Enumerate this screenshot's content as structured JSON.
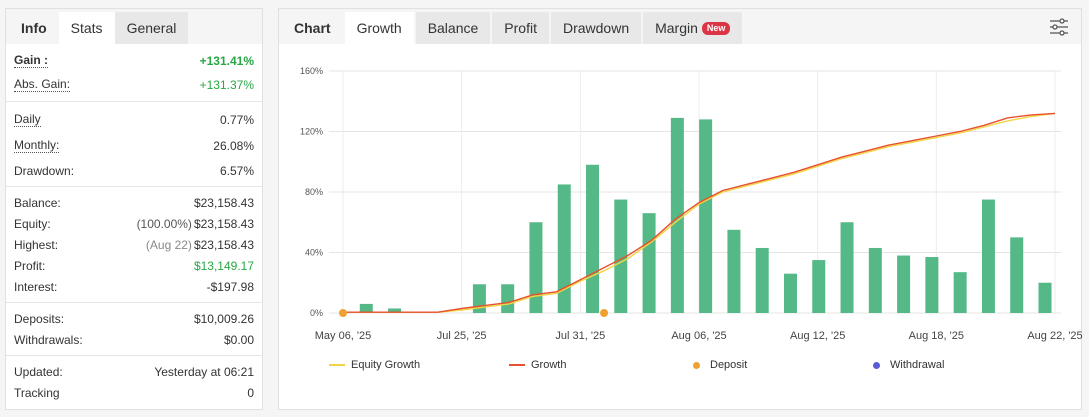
{
  "left_tabs": [
    {
      "label": "Info"
    },
    {
      "label": "Stats"
    },
    {
      "label": "General"
    }
  ],
  "stats": {
    "gain": {
      "label": "Gain :",
      "value": "+131.41%"
    },
    "abs_gain": {
      "label": "Abs. Gain:",
      "value": "+131.37%"
    },
    "daily": {
      "label": "Daily",
      "value": "0.77%"
    },
    "monthly": {
      "label": "Monthly:",
      "value": "26.08%"
    },
    "drawdown": {
      "label": "Drawdown:",
      "value": "6.57%"
    },
    "balance": {
      "label": "Balance:",
      "value": "$23,158.43"
    },
    "equity": {
      "label": "Equity:",
      "note": "(100.00%)",
      "value": "$23,158.43"
    },
    "highest": {
      "label": "Highest:",
      "note": "(Aug 22)",
      "value": "$23,158.43"
    },
    "profit": {
      "label": "Profit:",
      "value": "$13,149.17"
    },
    "interest": {
      "label": "Interest:",
      "value": "-$197.98"
    },
    "deposits": {
      "label": "Deposits:",
      "value": "$10,009.26"
    },
    "withdrawals": {
      "label": "Withdrawals:",
      "value": "$0.00"
    },
    "updated": {
      "label": "Updated:",
      "value": "Yesterday at 06:21"
    },
    "tracking": {
      "label": "Tracking",
      "value": "0"
    }
  },
  "right_tabs": [
    {
      "label": "Chart"
    },
    {
      "label": "Growth"
    },
    {
      "label": "Balance"
    },
    {
      "label": "Profit"
    },
    {
      "label": "Drawdown"
    },
    {
      "label": "Margin"
    }
  ],
  "margin_badge": "New",
  "icons": {
    "settings": "sliders-icon"
  },
  "colors": {
    "bars": "#55b887",
    "growth": "#e8502e",
    "equity_growth": "#f2d545",
    "deposit": "#f0a030",
    "withdrawal": "#5b5bd6",
    "positive": "#28a745"
  },
  "legend": [
    {
      "label": "Equity Growth"
    },
    {
      "label": "Growth"
    },
    {
      "label": "Deposit"
    },
    {
      "label": "Withdrawal"
    }
  ],
  "chart_data": {
    "type": "bar",
    "y_ticks": [
      "0%",
      "40%",
      "80%",
      "120%",
      "160%"
    ],
    "ylim": [
      0,
      160
    ],
    "x_tick_labels": [
      "May 06, '25",
      "Jul 25, '25",
      "Jul 31, '25",
      "Aug 06, '25",
      "Aug 12, '25",
      "Aug 18, '25",
      "Aug 22, '25"
    ],
    "x_tick_index": [
      0,
      5,
      10,
      15,
      20,
      25,
      30
    ],
    "grid": true,
    "series": [
      {
        "name": "Growth",
        "type": "bar",
        "values": [
          0,
          6,
          3,
          0,
          0,
          19,
          19,
          60,
          85,
          98,
          75,
          66,
          129,
          128,
          55,
          43,
          26,
          35,
          60,
          43,
          38,
          37,
          27,
          75,
          50,
          20
        ]
      },
      {
        "name": "Equity Growth",
        "type": "line",
        "values": [
          0.5,
          0.5,
          0.5,
          0.5,
          0.5,
          2,
          4,
          6,
          11,
          13,
          21,
          28,
          36,
          47,
          60,
          72,
          80,
          84,
          88,
          92,
          97,
          102,
          106,
          110,
          113,
          116,
          119,
          123,
          127,
          130,
          132
        ]
      },
      {
        "name": "Growth",
        "type": "line",
        "values": [
          0.5,
          0.5,
          0.5,
          0.5,
          0.5,
          3,
          5,
          7,
          12,
          14,
          22,
          30,
          38,
          48,
          62,
          73,
          81,
          85,
          89,
          93,
          98,
          103,
          107,
          111,
          114,
          117,
          120,
          124,
          129,
          131,
          132
        ]
      },
      {
        "name": "Deposit",
        "type": "scatter",
        "x_index": [
          0,
          11
        ],
        "values": [
          0,
          0
        ]
      }
    ]
  }
}
